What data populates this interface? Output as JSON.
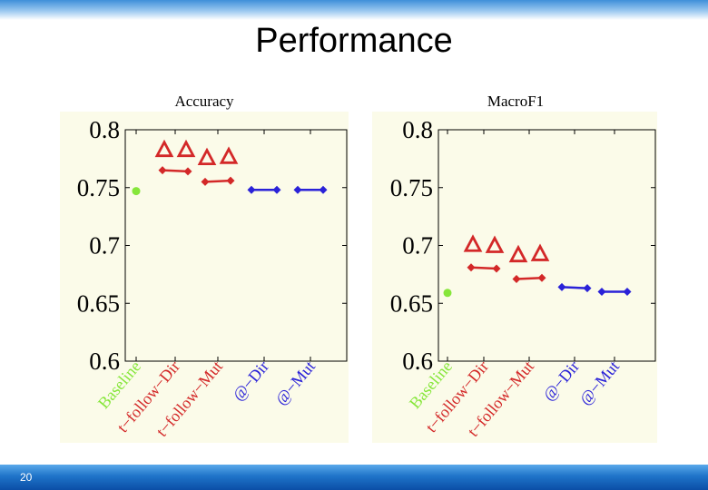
{
  "slide": {
    "title": "Performance",
    "page_number": "20"
  },
  "chart_data": [
    {
      "type": "scatter",
      "title": "Accuracy",
      "ylim": [
        0.6,
        0.8
      ],
      "yticks": [
        "0.8",
        "0.75",
        "0.7",
        "0.65",
        "0.6"
      ],
      "categories": [
        "Baseline",
        "t−follow−Dir",
        "t−follow−Mut",
        "@−Dir",
        "@−Mut"
      ],
      "category_colors": [
        "#86e63a",
        "#d32828",
        "#d32828",
        "#2a22d8",
        "#2a22d8"
      ],
      "series": [
        {
          "name": "Baseline",
          "marker": "dot",
          "color": "#86e63a",
          "values": [
            [
              0.747
            ]
          ]
        },
        {
          "name": "t−follow−Dir",
          "marker": "triangle",
          "color": "#d32828",
          "values": [
            [
              0.783,
              0.783
            ]
          ]
        },
        {
          "name": "t−follow−Dir",
          "marker": "diamond-line",
          "color": "#d32828",
          "values": [
            [
              0.765,
              0.764
            ]
          ]
        },
        {
          "name": "t−follow−Mut",
          "marker": "triangle",
          "color": "#d32828",
          "values": [
            [
              0.776,
              0.777
            ]
          ]
        },
        {
          "name": "t−follow−Mut",
          "marker": "diamond-line",
          "color": "#d32828",
          "values": [
            [
              0.755,
              0.756
            ]
          ]
        },
        {
          "name": "@−Dir",
          "marker": "diamond-line",
          "color": "#2a22d8",
          "values": [
            [
              0.748,
              0.748
            ]
          ]
        },
        {
          "name": "@−Mut",
          "marker": "diamond-line",
          "color": "#2a22d8",
          "values": [
            [
              0.748,
              0.748
            ]
          ]
        }
      ]
    },
    {
      "type": "scatter",
      "title": "MacroF1",
      "ylim": [
        0.6,
        0.8
      ],
      "yticks": [
        "0.8",
        "0.75",
        "0.7",
        "0.65",
        "0.6"
      ],
      "categories": [
        "Baseline",
        "t−follow−Dir",
        "t−follow−Mut",
        "@−Dir",
        "@−Mut"
      ],
      "category_colors": [
        "#86e63a",
        "#d32828",
        "#d32828",
        "#2a22d8",
        "#2a22d8"
      ],
      "series": [
        {
          "name": "Baseline",
          "marker": "dot",
          "color": "#86e63a",
          "values": [
            [
              0.659
            ]
          ]
        },
        {
          "name": "t−follow−Dir",
          "marker": "triangle",
          "color": "#d32828",
          "values": [
            [
              0.701,
              0.7
            ]
          ]
        },
        {
          "name": "t−follow−Dir",
          "marker": "diamond-line",
          "color": "#d32828",
          "values": [
            [
              0.681,
              0.68
            ]
          ]
        },
        {
          "name": "t−follow−Mut",
          "marker": "triangle",
          "color": "#d32828",
          "values": [
            [
              0.692,
              0.693
            ]
          ]
        },
        {
          "name": "t−follow−Mut",
          "marker": "diamond-line",
          "color": "#d32828",
          "values": [
            [
              0.671,
              0.672
            ]
          ]
        },
        {
          "name": "@−Dir",
          "marker": "diamond-line",
          "color": "#2a22d8",
          "values": [
            [
              0.664,
              0.663
            ]
          ]
        },
        {
          "name": "@−Mut",
          "marker": "diamond-line",
          "color": "#2a22d8",
          "values": [
            [
              0.66,
              0.66
            ]
          ]
        }
      ]
    }
  ]
}
